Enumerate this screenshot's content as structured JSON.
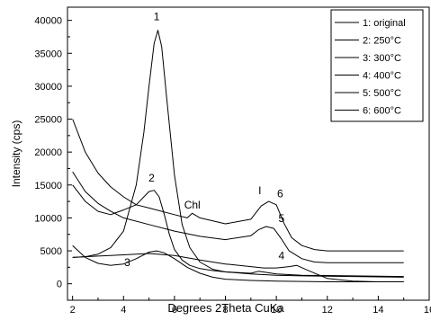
{
  "chart_data": {
    "type": "line",
    "xlabel": "Degrees 2Theta CuKa",
    "ylabel": "Intensity (cps)",
    "xlim": [
      1.8,
      16
    ],
    "ylim": [
      -2500,
      42000
    ],
    "x_ticks": [
      2,
      4,
      6,
      8,
      10,
      12,
      14,
      16
    ],
    "x_tick_labels": [
      "2",
      "4",
      "6",
      "8",
      "10",
      "12",
      "14",
      "16"
    ],
    "y_ticks": [
      0,
      5000,
      10000,
      15000,
      20000,
      25000,
      30000,
      35000,
      40000
    ],
    "y_tick_labels": [
      "0",
      "5000",
      "10000",
      "15000",
      "20000",
      "25000",
      "30000",
      "35000",
      "40000"
    ],
    "grid": false,
    "legend_position": "top-right",
    "series": [
      {
        "name": "1: original",
        "label": "1",
        "x": [
          2.0,
          2.5,
          3.0,
          3.5,
          4.0,
          4.5,
          4.8,
          5.0,
          5.2,
          5.35,
          5.5,
          5.7,
          6.0,
          6.3,
          6.6,
          7.0,
          7.5,
          8.0,
          9.0,
          10.0,
          11.0,
          12.0,
          13.0,
          14.0,
          15.0
        ],
        "values": [
          4000,
          4100,
          4500,
          5500,
          8000,
          15000,
          23000,
          30000,
          36500,
          38500,
          36000,
          28000,
          16500,
          9000,
          5500,
          3300,
          2200,
          1800,
          1500,
          1300,
          1200,
          1150,
          1100,
          1050,
          1000
        ]
      },
      {
        "name": "2: 250°C",
        "label": "2",
        "x": [
          2.0,
          2.5,
          3.0,
          3.5,
          3.7,
          4.0,
          4.5,
          4.8,
          5.0,
          5.2,
          5.4,
          5.6,
          5.8,
          6.0,
          6.3,
          6.6,
          7.0,
          7.5,
          8.0,
          9.0,
          9.3,
          10.0,
          11.0,
          12.0,
          13.0,
          14.0,
          15.0
        ],
        "values": [
          15000,
          12500,
          11000,
          10500,
          10800,
          11200,
          12000,
          13200,
          14000,
          14200,
          13200,
          10500,
          7500,
          5200,
          3600,
          2800,
          2300,
          2000,
          1800,
          1600,
          1900,
          1500,
          1300,
          1250,
          1200,
          1150,
          1100
        ]
      },
      {
        "name": "3: 300°C",
        "label": "3",
        "x": [
          2.0,
          2.5,
          3.0,
          3.5,
          4.0,
          4.5,
          5.0,
          5.3,
          5.6,
          6.0,
          6.5,
          7.0,
          7.5,
          8.0,
          9.0,
          10.0,
          11.0,
          12.0,
          13.0,
          14.0,
          15.0
        ],
        "values": [
          5800,
          4000,
          3100,
          2800,
          3000,
          3800,
          4800,
          5000,
          4700,
          3800,
          2500,
          1600,
          1000,
          700,
          500,
          400,
          350,
          300,
          300,
          300,
          300
        ]
      },
      {
        "name": "4: 400°C",
        "label": "4",
        "x": [
          2.0,
          3.0,
          4.0,
          5.0,
          6.0,
          7.0,
          8.0,
          9.0,
          9.5,
          10.0,
          10.5,
          10.8,
          11.2,
          12.0,
          13.0,
          14.0,
          15.0
        ],
        "values": [
          4000,
          4200,
          4400,
          4600,
          4300,
          3600,
          3000,
          2600,
          2400,
          2400,
          2600,
          2800,
          2100,
          800,
          400,
          300,
          300
        ]
      },
      {
        "name": "5: 500°C",
        "label": "5",
        "x": [
          2.0,
          2.5,
          3.0,
          3.5,
          4.0,
          5.0,
          6.0,
          7.0,
          8.0,
          9.0,
          9.3,
          9.6,
          9.9,
          10.2,
          10.5,
          11.0,
          11.5,
          12.0,
          13.0,
          14.0,
          15.0
        ],
        "values": [
          17000,
          14000,
          12200,
          11000,
          10000,
          9000,
          8000,
          7200,
          6700,
          7300,
          8200,
          8700,
          8400,
          6800,
          5000,
          3800,
          3300,
          3200,
          3200,
          3200,
          3200
        ]
      },
      {
        "name": "6: 600°C",
        "label": "6",
        "x": [
          2.0,
          2.5,
          3.0,
          3.5,
          4.0,
          4.5,
          5.0,
          6.0,
          6.5,
          6.7,
          7.0,
          8.0,
          9.0,
          9.4,
          9.7,
          10.0,
          10.3,
          10.6,
          11.0,
          11.5,
          12.0,
          13.0,
          14.0,
          15.0
        ],
        "values": [
          25000,
          20000,
          16800,
          14700,
          13200,
          12000,
          11500,
          10500,
          10000,
          10700,
          10000,
          9100,
          9800,
          11800,
          12500,
          12000,
          9200,
          7000,
          5800,
          5200,
          5000,
          5000,
          5000,
          5000
        ]
      }
    ],
    "annotations": [
      {
        "text": "1",
        "x": 5.3,
        "y": 40000
      },
      {
        "text": "2",
        "x": 5.1,
        "y": 15500
      },
      {
        "text": "3",
        "x": 4.15,
        "y": 2700
      },
      {
        "text": "4",
        "x": 10.2,
        "y": 3700
      },
      {
        "text": "5",
        "x": 10.2,
        "y": 9400
      },
      {
        "text": "6",
        "x": 10.15,
        "y": 13100
      },
      {
        "text": "Chl",
        "x": 6.7,
        "y": 11400
      },
      {
        "text": "I",
        "x": 9.35,
        "y": 13600
      }
    ]
  }
}
